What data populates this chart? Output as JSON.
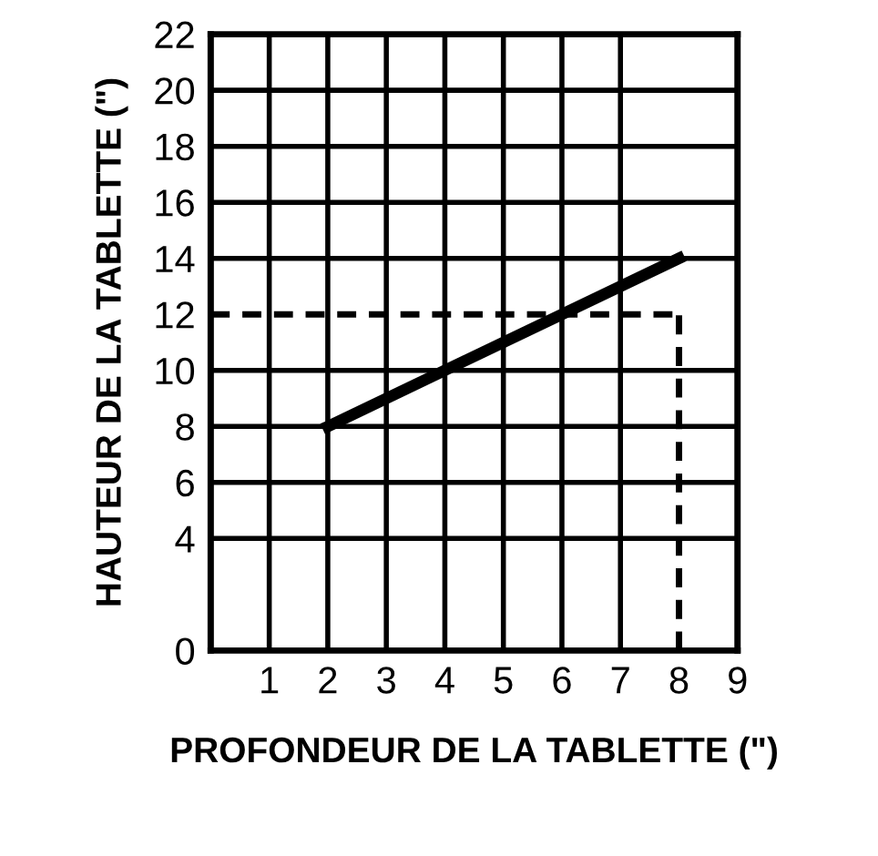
{
  "chart_data": {
    "type": "line",
    "xlabel": "PROFONDEUR DE LA TABLETTE (\")",
    "ylabel": "HAUTEUR DE LA TABLETTE (\")",
    "x": [
      2,
      8
    ],
    "series": [
      {
        "color": "#000000",
        "values": [
          8,
          14
        ]
      }
    ],
    "xlim": [
      0,
      9
    ],
    "xticks": [
      1,
      2,
      3,
      4,
      5,
      6,
      7,
      8,
      9
    ],
    "ylim": [
      0,
      22
    ],
    "yticks": [
      0,
      4,
      6,
      8,
      10,
      12,
      14,
      16,
      18,
      20,
      22
    ],
    "grid": true,
    "marker": "none",
    "line_style": "solid",
    "ref_lines": [
      {
        "axis": "y",
        "value": 12,
        "color": "#000000",
        "line_style": "dashed"
      },
      {
        "axis": "x",
        "value": 8,
        "color": "#000000",
        "line_style": "dashed"
      }
    ]
  }
}
